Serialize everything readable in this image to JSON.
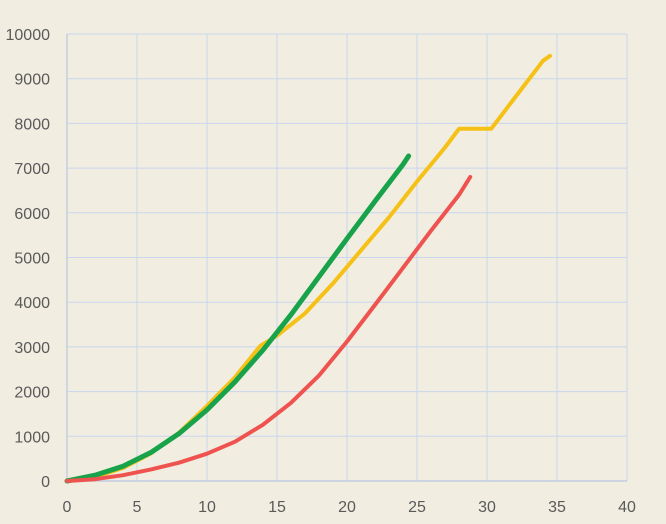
{
  "chart_data": {
    "type": "line",
    "title": "",
    "xlabel": "",
    "ylabel": "",
    "xlim": [
      0,
      40
    ],
    "ylim": [
      0,
      10000
    ],
    "x_ticks": [
      "0",
      "5",
      "10",
      "15",
      "20",
      "25",
      "30",
      "35",
      "40"
    ],
    "y_ticks": [
      "0",
      "1000",
      "2000",
      "3000",
      "4000",
      "5000",
      "6000",
      "7000",
      "8000",
      "9000",
      "10000"
    ],
    "grid": true,
    "legend": "none",
    "series": [
      {
        "color": "#f5c116",
        "points": [
          [
            0,
            0
          ],
          [
            2,
            90
          ],
          [
            4,
            290
          ],
          [
            6,
            620
          ],
          [
            8,
            1080
          ],
          [
            10,
            1680
          ],
          [
            12,
            2320
          ],
          [
            13.8,
            3020
          ],
          [
            15,
            3250
          ],
          [
            17,
            3750
          ],
          [
            19,
            4420
          ],
          [
            21,
            5160
          ],
          [
            23,
            5900
          ],
          [
            25,
            6700
          ],
          [
            27,
            7460
          ],
          [
            28,
            7880
          ],
          [
            29,
            7880
          ],
          [
            30.3,
            7880
          ],
          [
            32,
            8580
          ],
          [
            34,
            9400
          ],
          [
            34.5,
            9510
          ]
        ]
      },
      {
        "color": "#18a24a",
        "points": [
          [
            0,
            0
          ],
          [
            2,
            130
          ],
          [
            4,
            330
          ],
          [
            6,
            640
          ],
          [
            8,
            1060
          ],
          [
            10,
            1590
          ],
          [
            12,
            2220
          ],
          [
            14,
            2930
          ],
          [
            16,
            3720
          ],
          [
            18,
            4570
          ],
          [
            20,
            5420
          ],
          [
            22,
            6260
          ],
          [
            24,
            7080
          ],
          [
            24.4,
            7270
          ]
        ]
      },
      {
        "color": "#ef5350",
        "points": [
          [
            0,
            0
          ],
          [
            2,
            40
          ],
          [
            4,
            130
          ],
          [
            6,
            260
          ],
          [
            8,
            410
          ],
          [
            10,
            610
          ],
          [
            12,
            880
          ],
          [
            14,
            1260
          ],
          [
            16,
            1750
          ],
          [
            18,
            2360
          ],
          [
            20,
            3120
          ],
          [
            22,
            3940
          ],
          [
            24,
            4770
          ],
          [
            26,
            5600
          ],
          [
            28,
            6400
          ],
          [
            28.8,
            6800
          ]
        ]
      }
    ]
  }
}
